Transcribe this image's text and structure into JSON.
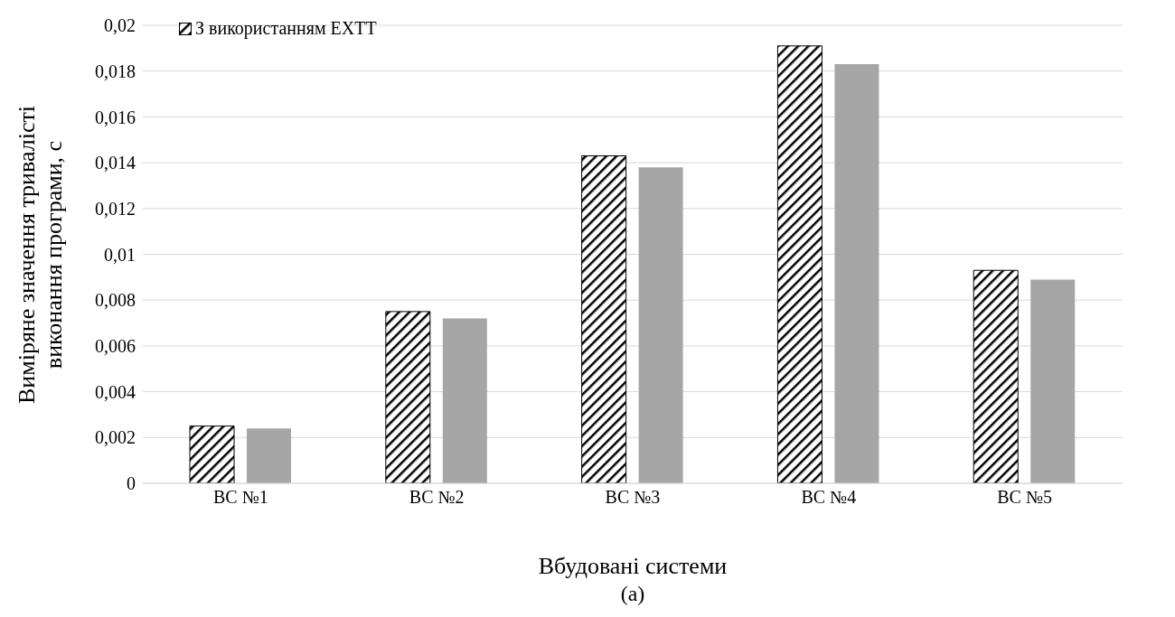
{
  "chart_data": {
    "type": "bar",
    "xlabel": "Вбудовані системи",
    "ylabel": "Виміряне значення тривалісті\nвиконання програми, с",
    "categories": [
      "ВС №1",
      "ВС №2",
      "ВС №3",
      "ВС №4",
      "ВС №5"
    ],
    "series": [
      {
        "name": "З використанням EXTT",
        "color": "#000000",
        "values": [
          0.0025,
          0.0075,
          0.0143,
          0.0191,
          0.0093
        ]
      },
      {
        "color": "#a6a6a6",
        "values": [
          0.0024,
          0.0072,
          0.0138,
          0.0183,
          0.0089
        ]
      }
    ],
    "ylim": [
      0,
      0.02
    ],
    "yticks": [
      {
        "value": 0,
        "label": "0"
      },
      {
        "value": 0.002,
        "label": "0,002"
      },
      {
        "value": 0.004,
        "label": "0,004"
      },
      {
        "value": 0.006,
        "label": "0,006"
      },
      {
        "value": 0.008,
        "label": "0,008"
      },
      {
        "value": 0.01,
        "label": "0,01"
      },
      {
        "value": 0.012,
        "label": "0,012"
      },
      {
        "value": 0.014,
        "label": "0,014"
      },
      {
        "value": 0.016,
        "label": "0,016"
      },
      {
        "value": 0.018,
        "label": "0,018"
      },
      {
        "value": 0.02,
        "label": "0,02"
      }
    ],
    "grid": "y",
    "legend": "top left",
    "annotations": [
      "(a)"
    ]
  }
}
